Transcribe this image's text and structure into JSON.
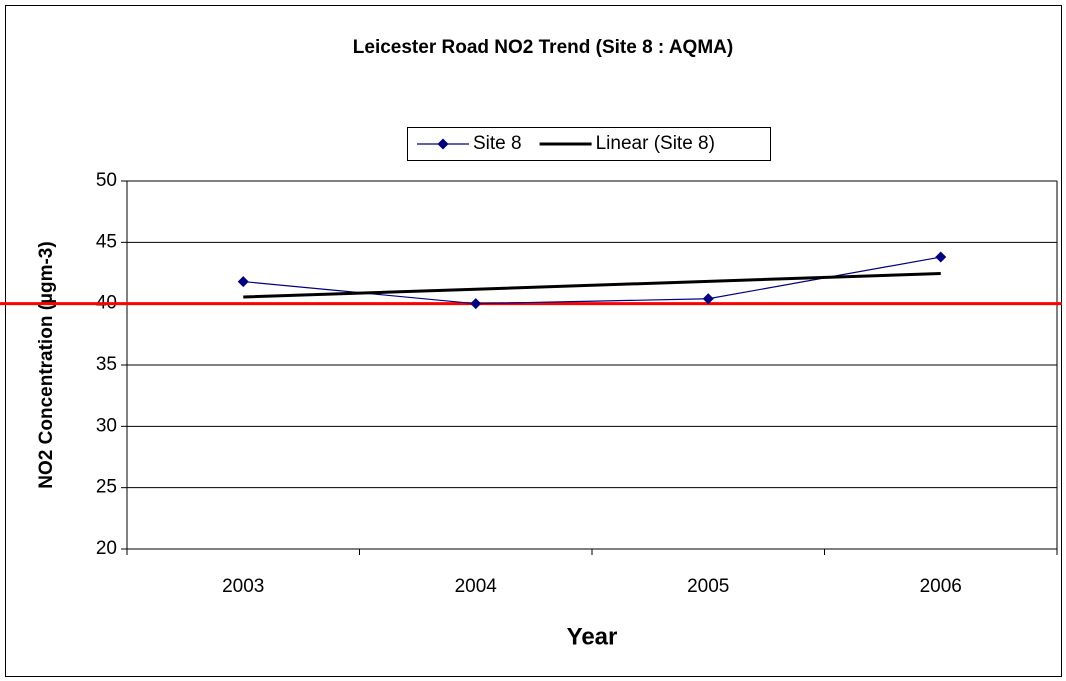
{
  "chart_data": {
    "type": "line",
    "title": "Leicester Road NO2 Trend (Site 8 : AQMA)",
    "x_label": "Year",
    "y_label": "NO2 Concentration (µgm-3)",
    "categories": [
      "2003",
      "2004",
      "2005",
      "2006"
    ],
    "series": [
      {
        "name": "Site 8",
        "color": "#000080",
        "values": [
          41.8,
          40.0,
          40.4,
          43.8
        ],
        "marker": "diamond"
      },
      {
        "name": "Linear (Site 8)",
        "color": "#000000",
        "values": [
          40.54,
          41.18,
          41.82,
          42.46
        ],
        "marker": "none"
      }
    ],
    "reference_line": {
      "value": 40,
      "color": "#ff0000"
    },
    "ylim": [
      20,
      50
    ],
    "yticks": [
      20,
      25,
      30,
      35,
      40,
      45,
      50
    ],
    "grid": true,
    "legend": "top"
  }
}
